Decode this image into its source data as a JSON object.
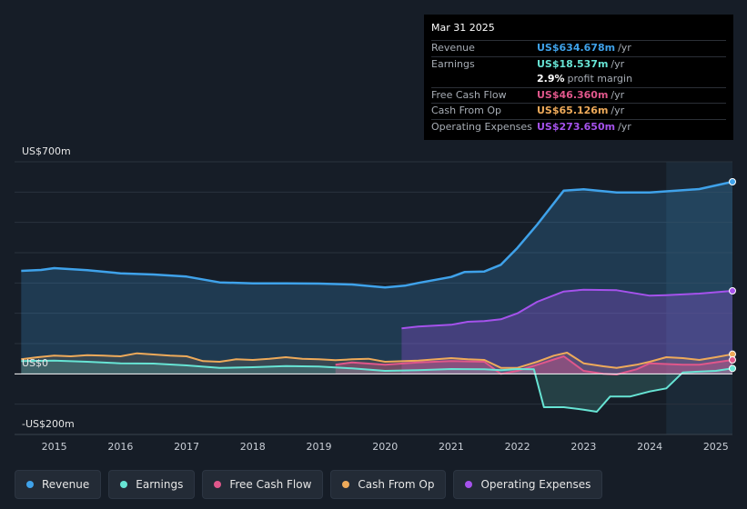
{
  "tooltip": {
    "date": "Mar 31 2025",
    "rows": [
      {
        "label": "Revenue",
        "value": "US$634.678m",
        "unit": "/yr",
        "color": "#3fa2ea"
      },
      {
        "label": "Earnings",
        "value": "US$18.537m",
        "unit": "/yr",
        "color": "#67e4d4"
      },
      {
        "label": "",
        "value": "2.9%",
        "unit": "profit margin",
        "color": "#ffffff"
      },
      {
        "label": "Free Cash Flow",
        "value": "US$46.360m",
        "unit": "/yr",
        "color": "#e0578b"
      },
      {
        "label": "Cash From Op",
        "value": "US$65.126m",
        "unit": "/yr",
        "color": "#eeaa5a"
      },
      {
        "label": "Operating Expenses",
        "value": "US$273.650m",
        "unit": "/yr",
        "color": "#a552ec"
      }
    ]
  },
  "legend": [
    {
      "label": "Revenue",
      "color": "#3fa2ea"
    },
    {
      "label": "Earnings",
      "color": "#67e4d4"
    },
    {
      "label": "Free Cash Flow",
      "color": "#e0578b"
    },
    {
      "label": "Cash From Op",
      "color": "#eeaa5a"
    },
    {
      "label": "Operating Expenses",
      "color": "#a552ec"
    }
  ],
  "chart_data": {
    "type": "area",
    "title": "",
    "ylim": [
      -200,
      700
    ],
    "y_labels": [
      "US$700m",
      "US$0",
      "-US$200m"
    ],
    "xlim": [
      2014.4,
      2025.25
    ],
    "x_ticks": [
      "2015",
      "2016",
      "2017",
      "2018",
      "2019",
      "2020",
      "2021",
      "2022",
      "2023",
      "2024",
      "2025"
    ],
    "forecast_start": 2024.25,
    "series": [
      {
        "name": "Revenue",
        "color": "#3fa2ea",
        "x": [
          2014.5,
          2014.8,
          2015.0,
          2015.5,
          2016.0,
          2016.5,
          2017.0,
          2017.5,
          2018.0,
          2018.5,
          2019.0,
          2019.5,
          2020.0,
          2020.3,
          2020.5,
          2021.0,
          2021.2,
          2021.5,
          2021.75,
          2022.0,
          2022.3,
          2022.7,
          2023.0,
          2023.5,
          2024.0,
          2024.5,
          2024.75,
          2025.25
        ],
        "values": [
          340,
          343,
          349,
          342,
          332,
          328,
          321,
          302,
          299,
          299,
          298,
          295,
          285,
          291,
          300,
          320,
          336,
          338,
          360,
          416,
          493,
          605,
          609,
          599,
          599,
          606,
          610,
          634
        ]
      },
      {
        "name": "Earnings",
        "color": "#67e4d4",
        "x": [
          2014.5,
          2015.0,
          2015.5,
          2016.0,
          2016.5,
          2017.0,
          2017.5,
          2018.0,
          2018.5,
          2019.0,
          2019.5,
          2020.0,
          2020.5,
          2021.0,
          2021.5,
          2021.75,
          2022.0,
          2022.25,
          2022.4,
          2022.7,
          2023.0,
          2023.2,
          2023.4,
          2023.7,
          2024.0,
          2024.25,
          2024.5,
          2025.0,
          2025.25
        ],
        "values": [
          42,
          44,
          40,
          35,
          34,
          28,
          20,
          22,
          26,
          24,
          18,
          10,
          12,
          16,
          15,
          12,
          16,
          15,
          -110,
          -110,
          -118,
          -125,
          -75,
          -75,
          -58,
          -48,
          5,
          10,
          18
        ]
      },
      {
        "name": "Free Cash Flow",
        "color": "#e0578b",
        "x": [
          2019.25,
          2019.5,
          2020.0,
          2020.5,
          2021.0,
          2021.5,
          2021.75,
          2022.0,
          2022.3,
          2022.7,
          2023.0,
          2023.3,
          2023.5,
          2023.8,
          2024.0,
          2024.5,
          2024.75,
          2025.25
        ],
        "values": [
          30,
          38,
          30,
          38,
          42,
          40,
          0,
          10,
          30,
          58,
          10,
          0,
          -2,
          15,
          35,
          30,
          30,
          46
        ]
      },
      {
        "name": "Cash From Op",
        "color": "#eeaa5a",
        "x": [
          2014.5,
          2014.75,
          2015.0,
          2015.25,
          2015.5,
          2015.75,
          2016.0,
          2016.25,
          2016.5,
          2016.75,
          2017.0,
          2017.25,
          2017.5,
          2017.75,
          2018.0,
          2018.25,
          2018.5,
          2018.75,
          2019.0,
          2019.25,
          2019.5,
          2019.75,
          2020.0,
          2020.5,
          2021.0,
          2021.25,
          2021.5,
          2021.75,
          2022.0,
          2022.3,
          2022.55,
          2022.75,
          2023.0,
          2023.3,
          2023.5,
          2023.8,
          2024.0,
          2024.25,
          2024.5,
          2024.75,
          2025.0,
          2025.25
        ],
        "values": [
          48,
          55,
          60,
          58,
          62,
          60,
          58,
          68,
          64,
          60,
          58,
          42,
          40,
          48,
          46,
          50,
          55,
          50,
          48,
          45,
          48,
          50,
          40,
          44,
          52,
          48,
          46,
          20,
          20,
          40,
          60,
          70,
          35,
          25,
          20,
          30,
          40,
          55,
          52,
          46,
          55,
          65
        ]
      },
      {
        "name": "Operating Expenses",
        "color": "#a552ec",
        "x": [
          2020.25,
          2020.5,
          2021.0,
          2021.25,
          2021.5,
          2021.75,
          2022.0,
          2022.3,
          2022.7,
          2023.0,
          2023.5,
          2024.0,
          2024.25,
          2024.75,
          2025.25
        ],
        "values": [
          150,
          156,
          162,
          172,
          174,
          180,
          200,
          238,
          272,
          278,
          276,
          258,
          260,
          265,
          274
        ]
      }
    ]
  }
}
